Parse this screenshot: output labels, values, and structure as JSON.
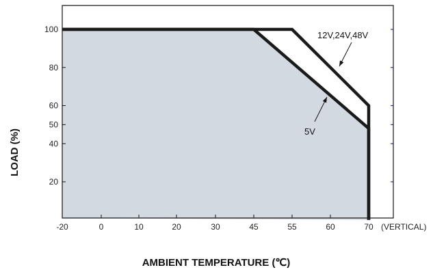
{
  "chart_data": {
    "type": "line",
    "xlabel": "AMBIENT TEMPERATURE (℃)",
    "ylabel": "LOAD (%)",
    "x_ticks": [
      "-20",
      "0",
      "10",
      "20",
      "30",
      "45",
      "55",
      "60",
      "70"
    ],
    "x_tick_values": [
      -20,
      0,
      10,
      20,
      30,
      45,
      55,
      60,
      70
    ],
    "x_extra_label": "(VERTICAL)",
    "y_ticks": [
      "20",
      "40",
      "50",
      "60",
      "80",
      "100"
    ],
    "y_tick_values": [
      20,
      40,
      50,
      60,
      80,
      100
    ],
    "xlim": [
      -20,
      80
    ],
    "ylim": [
      0,
      110
    ],
    "shaded_region_series": "5V",
    "series": [
      {
        "name": "12V,24V,48V",
        "points": [
          [
            -20,
            100
          ],
          [
            55,
            100
          ],
          [
            70,
            60
          ],
          [
            70,
            0
          ]
        ]
      },
      {
        "name": "5V",
        "points": [
          [
            -20,
            100
          ],
          [
            45,
            100
          ],
          [
            70,
            48
          ],
          [
            70,
            0
          ]
        ]
      }
    ],
    "colors": {
      "fill": "#d3d9e1",
      "line": "#1a1a1a",
      "right_ticks": "#2d3aa8"
    }
  }
}
